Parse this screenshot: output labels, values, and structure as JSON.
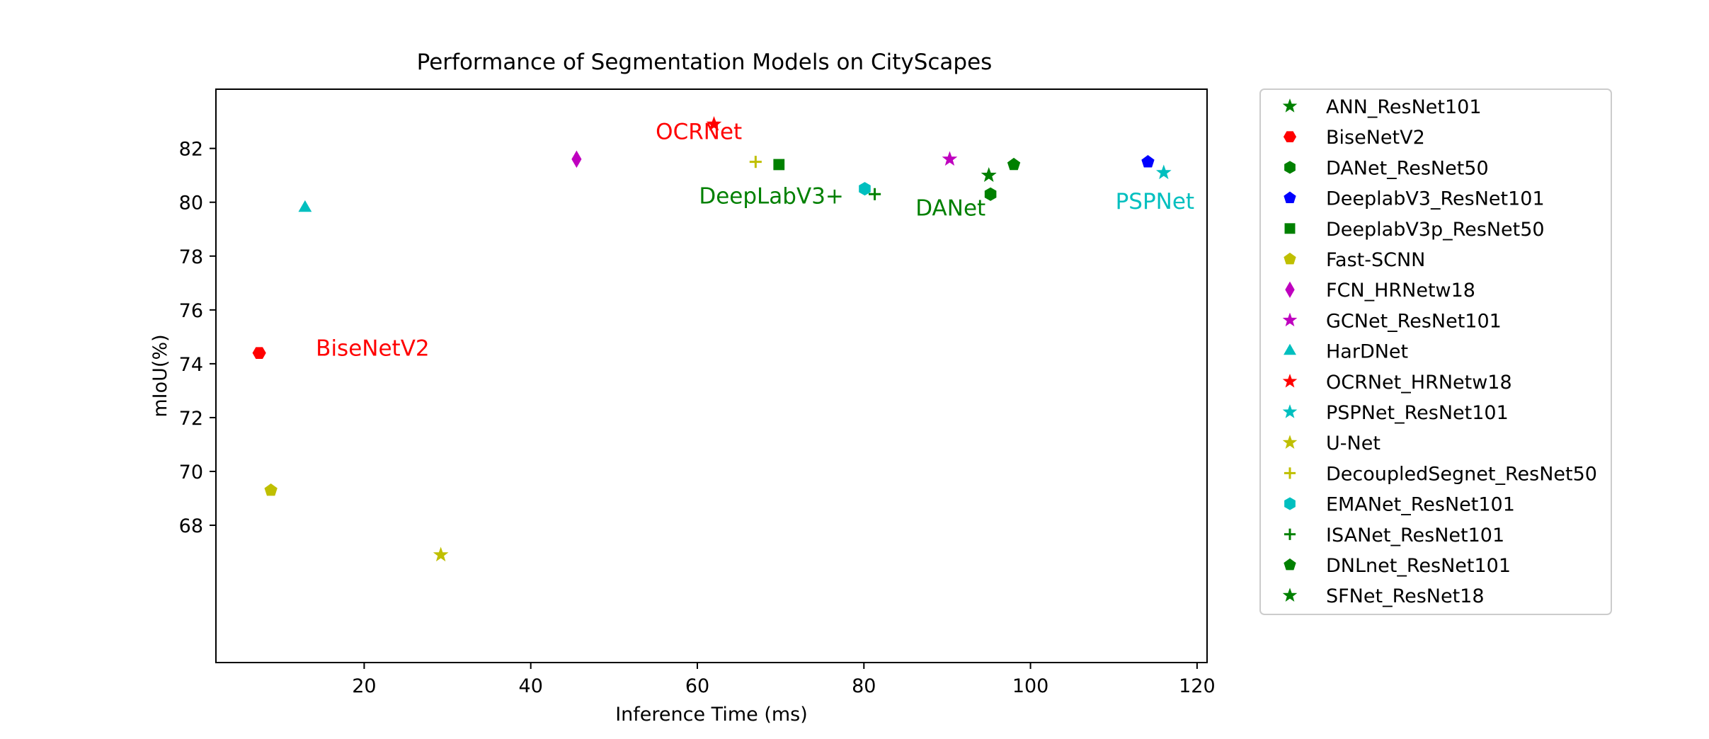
{
  "chart_data": {
    "type": "scatter",
    "title": "Performance of Segmentation Models on CityScapes",
    "xlabel": "Inference Time (ms)",
    "ylabel": "mIoU(%)",
    "xlim": [
      2.2,
      121.2
    ],
    "ylim": [
      62.9,
      84.2
    ],
    "xticks": [
      20,
      40,
      60,
      80,
      100,
      120
    ],
    "yticks": [
      68,
      70,
      72,
      74,
      76,
      78,
      80,
      82
    ],
    "grid": false,
    "legend_position": "outside-right",
    "series": [
      {
        "name": "ANN_ResNet101",
        "color": "#008000",
        "marker": "star",
        "x": 95,
        "y": 81.0
      },
      {
        "name": "BiseNetV2",
        "color": "#ff0000",
        "marker": "hexagon2",
        "x": 7.4,
        "y": 74.4
      },
      {
        "name": "DANet_ResNet50",
        "color": "#008000",
        "marker": "hexagon",
        "x": 95.2,
        "y": 80.3
      },
      {
        "name": "DeeplabV3_ResNet101",
        "color": "#0000ff",
        "marker": "pentagon",
        "x": 114.1,
        "y": 81.5
      },
      {
        "name": "DeeplabV3p_ResNet50",
        "color": "#008000",
        "marker": "square",
        "x": 69.8,
        "y": 81.4
      },
      {
        "name": "Fast-SCNN",
        "color": "#bfbf00",
        "marker": "pentagon",
        "x": 8.8,
        "y": 69.3
      },
      {
        "name": "FCN_HRNetw18",
        "color": "#bf00bf",
        "marker": "thin_diamond",
        "x": 45.5,
        "y": 81.6
      },
      {
        "name": "GCNet_ResNet101",
        "color": "#bf00bf",
        "marker": "star",
        "x": 90.3,
        "y": 81.6
      },
      {
        "name": "HarDNet",
        "color": "#00bfbf",
        "marker": "triangle",
        "x": 12.9,
        "y": 79.8
      },
      {
        "name": "OCRNet_HRNetw18",
        "color": "#ff0000",
        "marker": "star",
        "x": 62,
        "y": 82.9
      },
      {
        "name": "PSPNet_ResNet101",
        "color": "#00bfbf",
        "marker": "star",
        "x": 116,
        "y": 81.1
      },
      {
        "name": "U-Net",
        "color": "#bfbf00",
        "marker": "star",
        "x": 29.2,
        "y": 66.9
      },
      {
        "name": "DecoupledSegnet_ResNet50",
        "color": "#bfbf00",
        "marker": "plus",
        "x": 67,
        "y": 81.5
      },
      {
        "name": "EMANet_ResNet101",
        "color": "#00bfbf",
        "marker": "hexagon",
        "x": 80.1,
        "y": 80.5
      },
      {
        "name": "ISANet_ResNet101",
        "color": "#008000",
        "marker": "plus",
        "x": 81.3,
        "y": 80.3
      },
      {
        "name": "DNLnet_ResNet101",
        "color": "#008000",
        "marker": "pentagon",
        "x": 98,
        "y": 81.4
      },
      {
        "name": "SFNet_ResNet18",
        "color": "#008000",
        "marker": "star",
        "x": 95,
        "y": 81.0
      }
    ],
    "annotations": [
      {
        "text": "OCRNet",
        "color": "#ff0000",
        "x": 55,
        "y": 82.35
      },
      {
        "text": "BiseNetV2",
        "color": "#ff0000",
        "x": 14.2,
        "y": 74.3
      },
      {
        "text": "DeepLabV3+",
        "color": "#008000",
        "x": 60.2,
        "y": 79.95
      },
      {
        "text": "DANet",
        "color": "#008000",
        "x": 86.2,
        "y": 79.5
      },
      {
        "text": "PSPNet",
        "color": "#00bfbf",
        "x": 110.2,
        "y": 79.75
      }
    ]
  }
}
